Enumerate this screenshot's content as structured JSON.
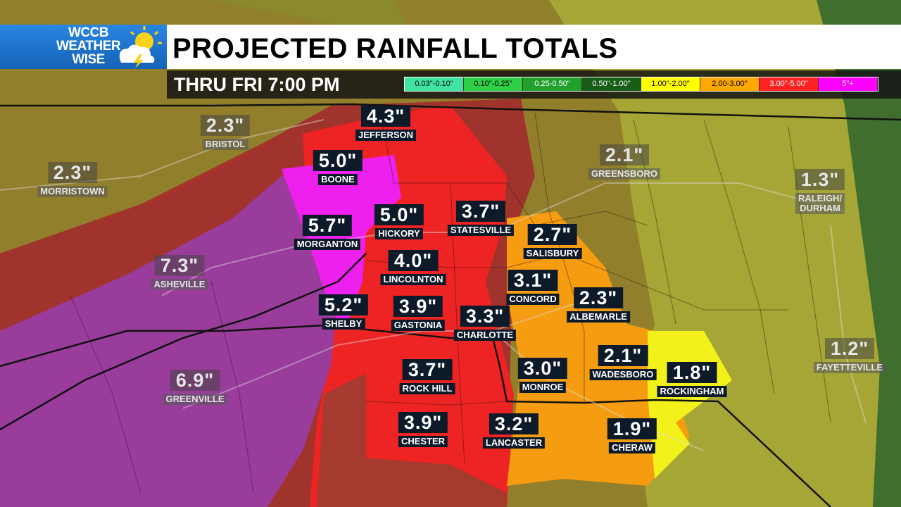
{
  "logo": {
    "line1": "WCCB",
    "line2": "WEATHER",
    "line3": "WISE"
  },
  "title": "PROJECTED RAINFALL TOTALS",
  "subtitle": "THRU FRI 7:00 PM",
  "legend": [
    {
      "label": "0.03\"-0.10\"",
      "color": "#3fe3a2"
    },
    {
      "label": "0.10\"-0.25\"",
      "color": "#2ccf45"
    },
    {
      "label": "0.25-0.50\"",
      "color": "#22a02c"
    },
    {
      "label": "0.50\"-1.00\"",
      "color": "#175c17"
    },
    {
      "label": "1.00\"-2.00\"",
      "color": "#ffff00"
    },
    {
      "label": "2.00-3.00\"",
      "color": "#ffa800"
    },
    {
      "label": "3.00\"-5.00\"",
      "color": "#ff2222"
    },
    {
      "label": "5\"+",
      "color": "#ff00ff"
    }
  ],
  "cities": [
    {
      "name": "JEFFERSON",
      "amount": "4.3\""
    },
    {
      "name": "BOONE",
      "amount": "5.0\""
    },
    {
      "name": "HICKORY",
      "amount": "5.0\""
    },
    {
      "name": "STATESVILLE",
      "amount": "3.7\""
    },
    {
      "name": "MORGANTON",
      "amount": "5.7\""
    },
    {
      "name": "LINCOLNTON",
      "amount": "4.0\""
    },
    {
      "name": "SALISBURY",
      "amount": "2.7\""
    },
    {
      "name": "CONCORD",
      "amount": "3.1\""
    },
    {
      "name": "ALBEMARLE",
      "amount": "2.3\""
    },
    {
      "name": "SHELBY",
      "amount": "5.2\""
    },
    {
      "name": "GASTONIA",
      "amount": "3.9\""
    },
    {
      "name": "CHARLOTTE",
      "amount": "3.3\""
    },
    {
      "name": "ROCK HILL",
      "amount": "3.7\""
    },
    {
      "name": "MONROE",
      "amount": "3.0\""
    },
    {
      "name": "WADESBORO",
      "amount": "2.1\""
    },
    {
      "name": "ROCKINGHAM",
      "amount": "1.8\""
    },
    {
      "name": "CHESTER",
      "amount": "3.9\""
    },
    {
      "name": "LANCASTER",
      "amount": "3.2\""
    },
    {
      "name": "CHERAW",
      "amount": "1.9\""
    },
    {
      "name": "BRISTOL",
      "amount": "2.3\""
    },
    {
      "name": "MORRISTOWN",
      "amount": "2.3\""
    },
    {
      "name": "GREENSBORO",
      "amount": "2.1\""
    },
    {
      "name": "RALEIGH/\nDURHAM",
      "amount": "1.3\""
    },
    {
      "name": "ASHEVILLE",
      "amount": "7.3\""
    },
    {
      "name": "GREENVILLE",
      "amount": "6.9\""
    },
    {
      "name": "FAYETTEVILLE",
      "amount": "1.2\""
    }
  ]
}
